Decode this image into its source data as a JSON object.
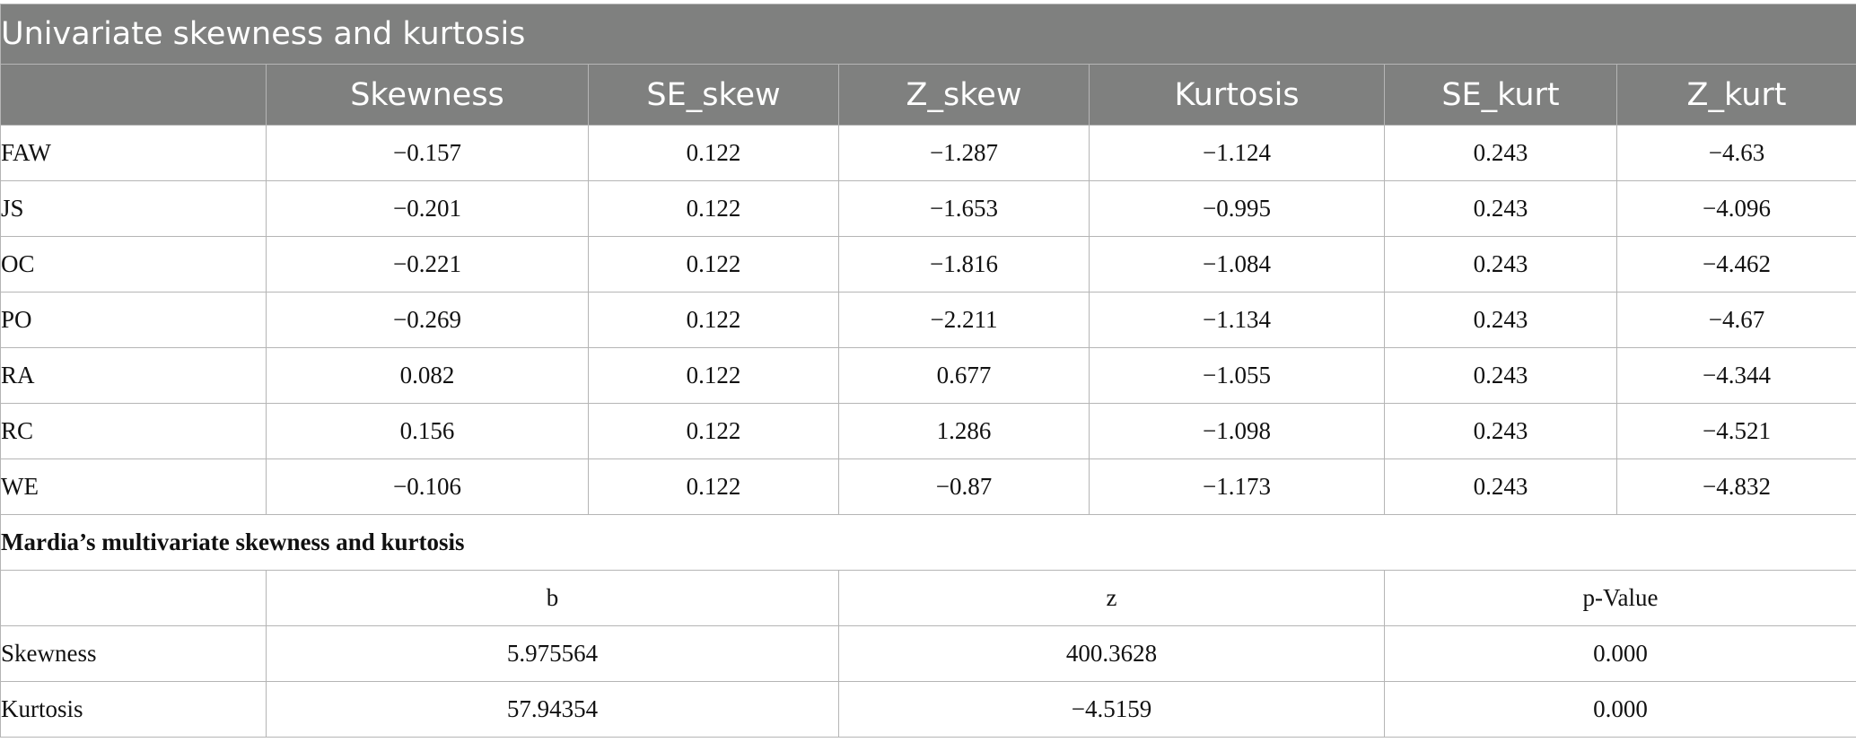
{
  "table": {
    "title": "Univariate skewness and kurtosis",
    "columns": [
      "",
      "Skewness",
      "SE_skew",
      "Z_skew",
      "Kurtosis",
      "SE_kurt",
      "Z_kurt"
    ],
    "rows": [
      {
        "label": "FAW",
        "values": [
          "−0.157",
          "0.122",
          "−1.287",
          "−1.124",
          "0.243",
          "−4.63"
        ]
      },
      {
        "label": "JS",
        "values": [
          "−0.201",
          "0.122",
          "−1.653",
          "−0.995",
          "0.243",
          "−4.096"
        ]
      },
      {
        "label": "OC",
        "values": [
          "−0.221",
          "0.122",
          "−1.816",
          "−1.084",
          "0.243",
          "−4.462"
        ]
      },
      {
        "label": "PO",
        "values": [
          "−0.269",
          "0.122",
          "−2.211",
          "−1.134",
          "0.243",
          "−4.67"
        ]
      },
      {
        "label": "RA",
        "values": [
          "0.082",
          "0.122",
          "0.677",
          "−1.055",
          "0.243",
          "−4.344"
        ]
      },
      {
        "label": "RC",
        "values": [
          "0.156",
          "0.122",
          "1.286",
          "−1.098",
          "0.243",
          "−4.521"
        ]
      },
      {
        "label": "WE",
        "values": [
          "−0.106",
          "0.122",
          "−0.87",
          "−1.173",
          "0.243",
          "−4.832"
        ]
      }
    ],
    "mardia": {
      "title": "Mardia’s multivariate skewness and kurtosis",
      "columns": [
        "",
        "b",
        "z",
        "p-Value"
      ],
      "rows": [
        {
          "label": "Skewness",
          "values": [
            "5.975564",
            "400.3628",
            "0.000"
          ]
        },
        {
          "label": "Kurtosis",
          "values": [
            "57.94354",
            "−4.5159",
            "0.000"
          ]
        }
      ]
    }
  },
  "colors": {
    "header_bg": "#7f807f",
    "header_text": "#ffffff",
    "grid": "#b5b5b5"
  }
}
